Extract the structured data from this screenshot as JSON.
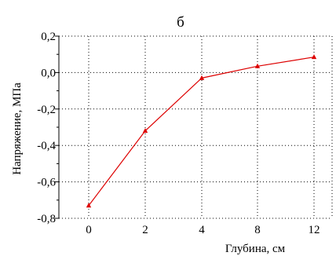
{
  "chart_data": {
    "type": "line",
    "title": "б",
    "xlabel": "Глубина, см",
    "ylabel": "Напряжение, МПа",
    "x_tick_labels": [
      "0",
      "2",
      "4",
      "8",
      "12"
    ],
    "y_tick_labels": [
      "0,2",
      "0,0",
      "-0,2",
      "-0,4",
      "-0,6",
      "-0,8"
    ],
    "y_ticks": [
      0.2,
      0.0,
      -0.2,
      -0.4,
      -0.6,
      -0.8
    ],
    "ylim": [
      -0.8,
      0.2
    ],
    "grid": true,
    "series": [
      {
        "values": [
          -0.73,
          -0.32,
          -0.03,
          0.035,
          0.085
        ],
        "color": "#dd0000",
        "marker": "triangle"
      }
    ]
  }
}
